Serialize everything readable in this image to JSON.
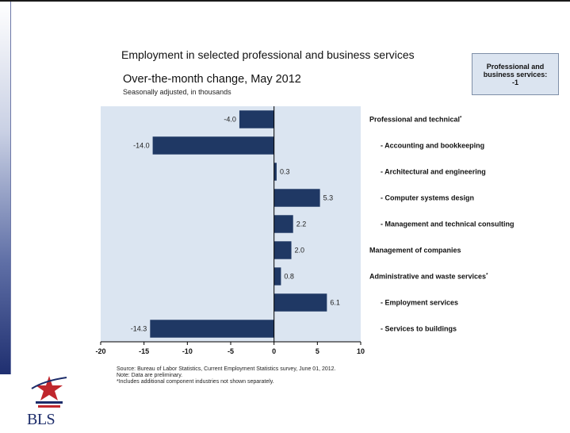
{
  "header": {
    "title": "Employment in selected professional and business services",
    "subtitle": "Over-the-month change, May 2012",
    "note": "Seasonally adjusted, in thousands"
  },
  "callout": {
    "line1": "Professional and",
    "line2": "business services:",
    "line3": "-1"
  },
  "chart_data": {
    "type": "bar",
    "orientation": "horizontal",
    "categories": [
      "Professional and technical",
      "- Accounting and bookkeeping",
      "- Architectural and engineering",
      "- Computer systems design",
      "- Management and technical consulting",
      "Management of companies",
      "Administrative and waste services",
      "- Employment services",
      "- Services to buildings"
    ],
    "footnote_marks": [
      "*",
      "",
      "",
      "",
      "",
      "",
      "*",
      "",
      ""
    ],
    "values": [
      -4.0,
      -14.0,
      0.3,
      5.3,
      2.2,
      2.0,
      0.8,
      6.1,
      -14.3
    ],
    "value_labels": [
      "-4.0",
      "-14.0",
      "0.3",
      "5.3",
      "2.2",
      "2.0",
      "0.8",
      "6.1",
      "-14.3"
    ],
    "xlim": [
      -20,
      10
    ],
    "xticks": [
      -20,
      -15,
      -10,
      -5,
      0,
      5,
      10
    ],
    "grid": false,
    "colors": {
      "bar": "#1f3864",
      "plot_bg": "#dbe5f1",
      "axis": "#000000"
    }
  },
  "footer": {
    "source": "Source: Bureau of Labor Statistics, Current Employment Statistics survey, June 01, 2012.",
    "note": "Note: Data are preliminary.",
    "footnote": "*Includes additional component industries not shown separately."
  },
  "logo": {
    "text": "BLS",
    "icon": "bls-star-icon"
  }
}
